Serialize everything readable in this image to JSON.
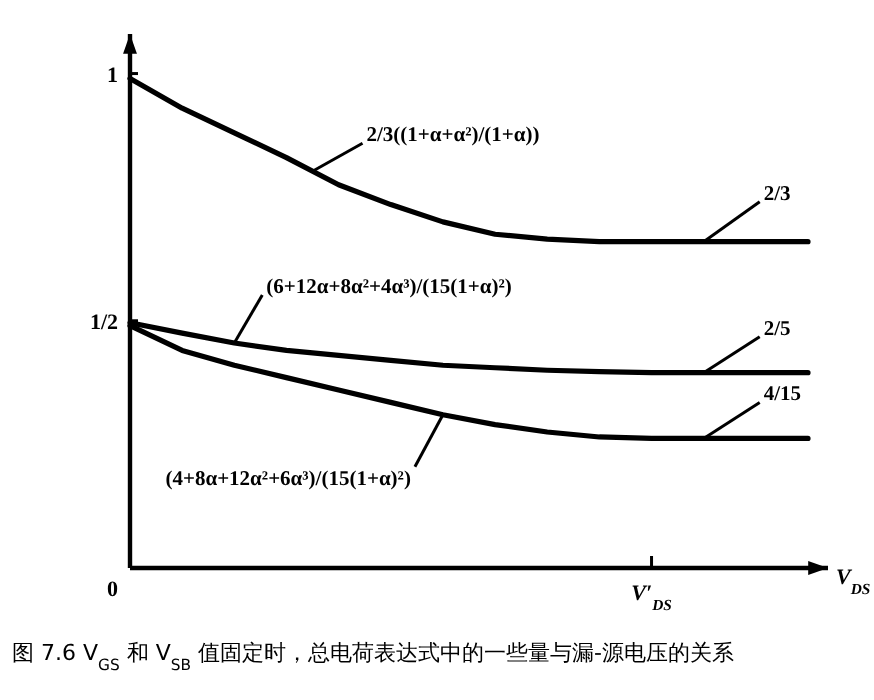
{
  "chart_data": {
    "type": "line",
    "categories": [
      null,
      null,
      null,
      null,
      null,
      null,
      null,
      null,
      null,
      null,
      "V′$_{DS}$",
      null,
      null,
      null
    ],
    "series": [
      {
        "color": "#000000",
        "values": [
          0.99,
          0.93,
          0.88,
          0.83,
          0.775,
          0.735,
          0.7,
          0.675,
          0.665,
          0.66,
          0.66,
          0.66,
          0.66,
          0.66
        ]
      },
      {
        "color": "#000000",
        "values": [
          0.496,
          0.475,
          0.455,
          0.44,
          0.43,
          0.42,
          0.41,
          0.405,
          0.4,
          0.397,
          0.395,
          0.395,
          0.395,
          0.395
        ]
      },
      {
        "color": "#000000",
        "values": [
          0.49,
          0.44,
          0.41,
          0.385,
          0.36,
          0.335,
          0.31,
          0.29,
          0.275,
          0.265,
          0.262,
          0.262,
          0.262,
          0.262
        ]
      }
    ],
    "ylim": [
      0,
      1.08
    ],
    "yticks": [
      {
        "value": 0,
        "label": "0"
      },
      {
        "value": 0.5,
        "label": "1/2"
      },
      {
        "value": 1,
        "label": "1"
      }
    ],
    "xlabel": "V$_{DS}$",
    "grid": false,
    "marker": "none",
    "line_style": "solid",
    "annotations": [
      "2/3((1+α+α²)/(1+α))",
      "2/3",
      "(6+12α+8α²+4α³)/(15(1+α)²)",
      "2/5",
      "4/15",
      "(4+8α+12α²+6α³)/(15(1+α)²)",
      "图 7.6  V$_{GS}$ 和 V$_{SB}$ 值固定时，总电荷表达式中的一些量与漏-源电压的关系"
    ]
  }
}
